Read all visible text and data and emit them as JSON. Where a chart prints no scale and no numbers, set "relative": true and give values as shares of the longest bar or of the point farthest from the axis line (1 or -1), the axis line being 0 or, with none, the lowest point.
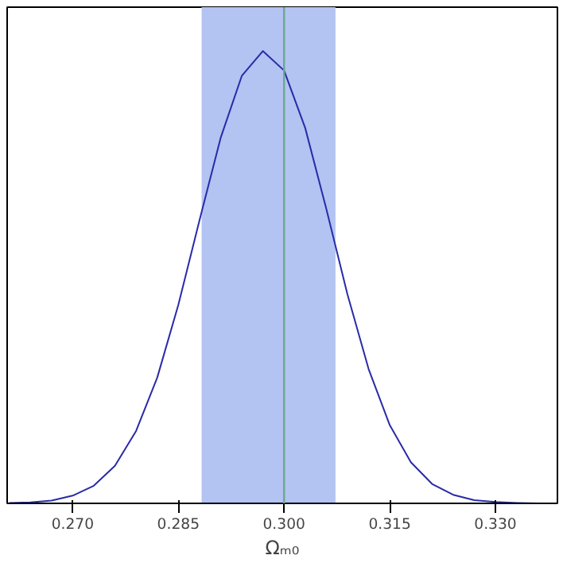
{
  "chart_data": {
    "type": "line",
    "xlabel": "Ωₘ₀",
    "relative": true,
    "x": [
      0.261,
      0.264,
      0.267,
      0.27,
      0.273,
      0.276,
      0.279,
      0.282,
      0.285,
      0.288,
      0.291,
      0.294,
      0.297,
      0.3,
      0.303,
      0.306,
      0.309,
      0.312,
      0.315,
      0.318,
      0.321,
      0.324,
      0.327,
      0.33,
      0.333,
      0.336,
      0.338
    ],
    "series": [
      {
        "color": "#2a2aa8",
        "values": [
          0.001,
          0.002,
          0.006,
          0.017,
          0.039,
          0.083,
          0.16,
          0.278,
          0.439,
          0.626,
          0.808,
          0.945,
          1.0,
          0.957,
          0.83,
          0.651,
          0.462,
          0.297,
          0.173,
          0.091,
          0.043,
          0.019,
          0.007,
          0.003,
          0.001,
          0.0,
          0.0
        ]
      }
    ],
    "xlim": [
      0.2607,
      0.3388
    ],
    "xticks": [
      {
        "value": 0.27,
        "label": "0.270"
      },
      {
        "value": 0.285,
        "label": "0.285"
      },
      {
        "value": 0.3,
        "label": "0.300"
      },
      {
        "value": 0.315,
        "label": "0.315"
      },
      {
        "value": 0.33,
        "label": "0.330"
      }
    ],
    "tick_labels": "x",
    "grid": false,
    "marker": "none",
    "line_style": "solid",
    "bands": [
      {
        "axis": "x",
        "from": 0.2883,
        "to": 0.3073,
        "color": "#b3c3f2"
      }
    ],
    "ref_lines": [
      {
        "axis": "x",
        "value": 0.3,
        "color": "#6aaa8a"
      }
    ]
  }
}
